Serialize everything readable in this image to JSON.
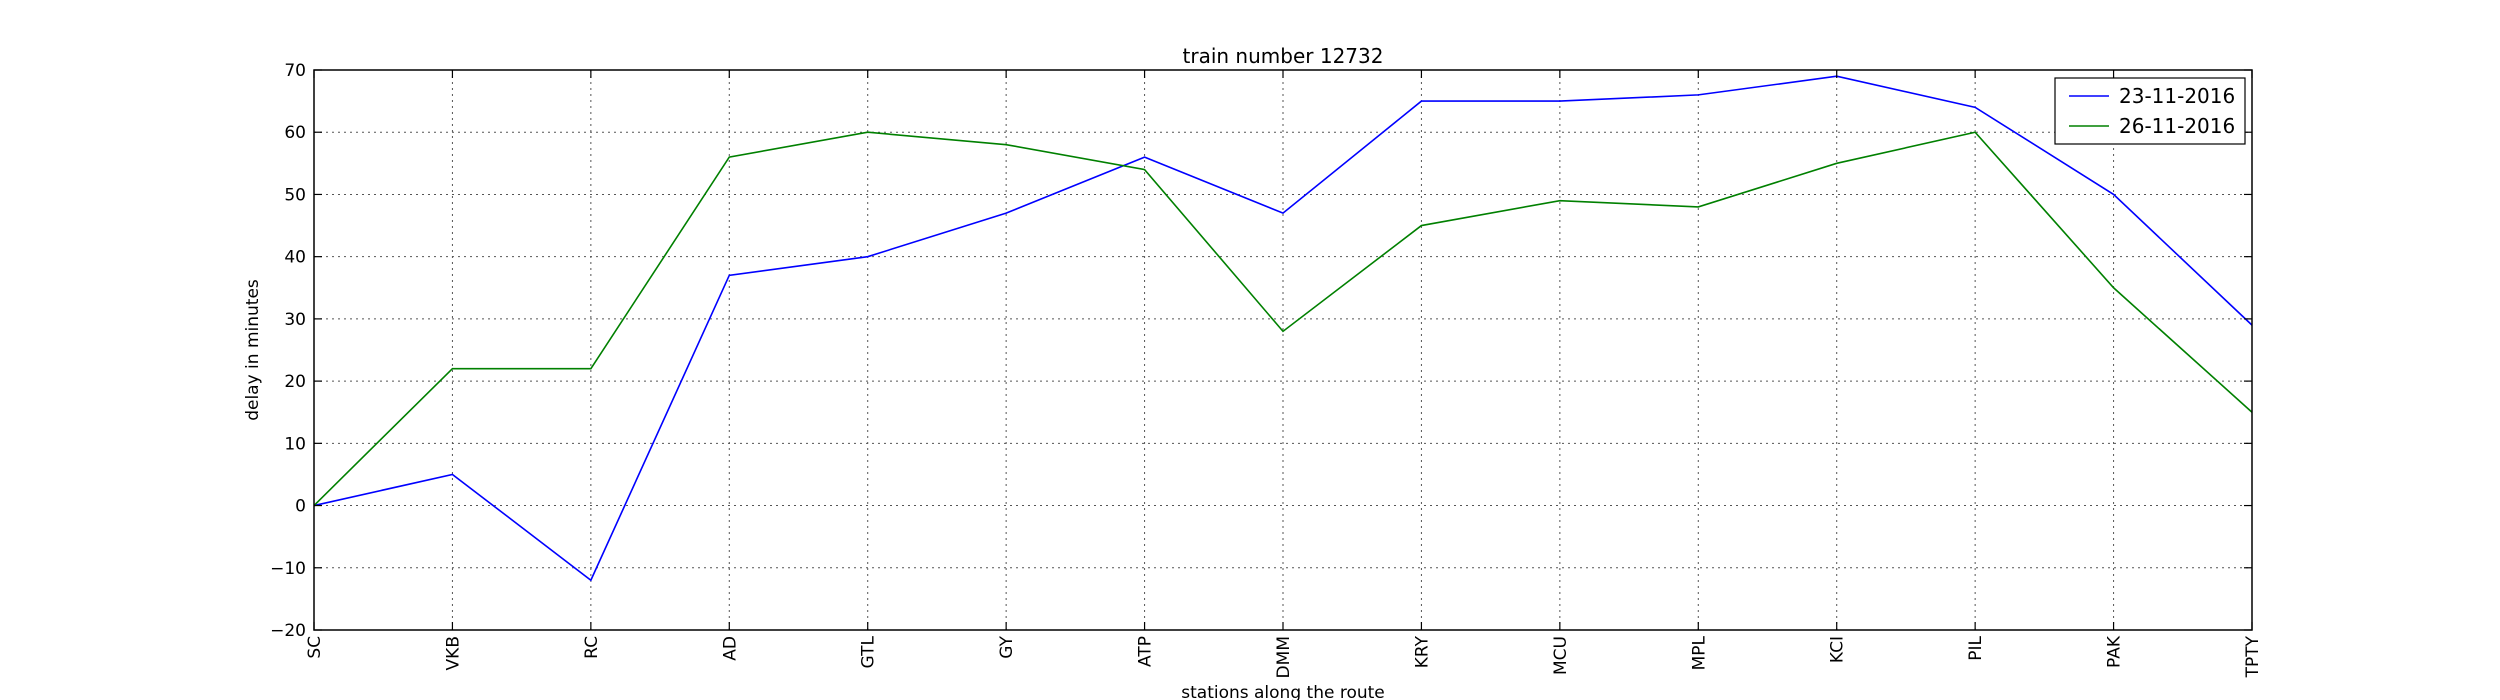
{
  "chart_data": {
    "type": "line",
    "title": "train number 12732",
    "xlabel": "stations along the route",
    "ylabel": "delay in minutes",
    "categories": [
      "SC",
      "VKB",
      "RC",
      "AD",
      "GTL",
      "GY",
      "ATP",
      "DMM",
      "KRY",
      "MCU",
      "MPL",
      "KCI",
      "PIL",
      "PAK",
      "TPTY"
    ],
    "ylim": [
      -20,
      70
    ],
    "yticks": [
      -20,
      -10,
      0,
      10,
      20,
      30,
      40,
      50,
      60,
      70
    ],
    "grid": true,
    "legend_position": "top-right",
    "series": [
      {
        "name": "23-11-2016",
        "color": "#0000ff",
        "values": [
          0,
          5,
          -12,
          37,
          40,
          47,
          56,
          47,
          65,
          65,
          66,
          69,
          64,
          50,
          29
        ]
      },
      {
        "name": "26-11-2016",
        "color": "#008000",
        "values": [
          0,
          22,
          22,
          56,
          60,
          58,
          54,
          28,
          45,
          49,
          48,
          55,
          60,
          35,
          15
        ]
      }
    ]
  }
}
